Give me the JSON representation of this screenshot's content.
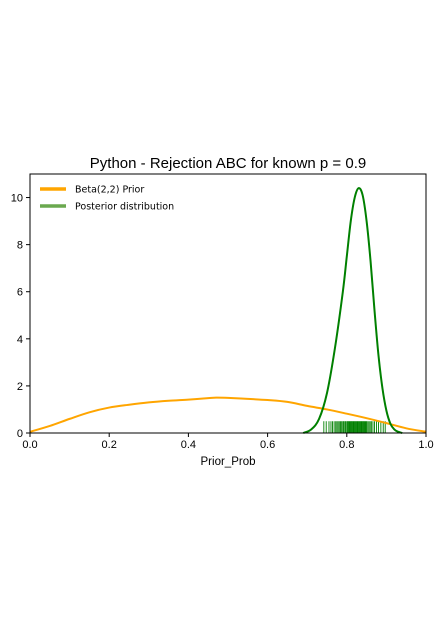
{
  "chart_data": {
    "type": "line",
    "title": "Python - Rejection ABC for known p = 0.9",
    "xlabel": "Prior_Prob",
    "ylabel": "",
    "xlim": [
      0.0,
      1.0
    ],
    "ylim": [
      0,
      11
    ],
    "xticks": [
      0.0,
      0.2,
      0.4,
      0.6,
      0.8,
      1.0
    ],
    "xtick_labels": [
      "0.0",
      "0.2",
      "0.4",
      "0.6",
      "0.8",
      "1.0"
    ],
    "yticks": [
      0,
      2,
      4,
      6,
      8,
      10
    ],
    "ytick_labels": [
      "0",
      "2",
      "4",
      "6",
      "8",
      "10"
    ],
    "grid": false,
    "legend_position": "top-left",
    "series": [
      {
        "name": "Beta(2,2) Prior",
        "color": "#FFA500",
        "x": [
          0.0,
          0.05,
          0.1,
          0.15,
          0.2,
          0.25,
          0.3,
          0.35,
          0.4,
          0.45,
          0.47,
          0.5,
          0.55,
          0.6,
          0.65,
          0.7,
          0.75,
          0.8,
          0.85,
          0.9,
          0.95,
          1.0
        ],
        "y": [
          0.05,
          0.3,
          0.6,
          0.88,
          1.08,
          1.2,
          1.3,
          1.37,
          1.42,
          1.48,
          1.5,
          1.49,
          1.45,
          1.4,
          1.32,
          1.15,
          1.0,
          0.82,
          0.63,
          0.42,
          0.2,
          0.05
        ]
      },
      {
        "name": "Posterior distribution",
        "color": "#008000",
        "x": [
          0.69,
          0.71,
          0.73,
          0.75,
          0.77,
          0.79,
          0.8,
          0.81,
          0.82,
          0.83,
          0.84,
          0.85,
          0.86,
          0.87,
          0.88,
          0.89,
          0.9,
          0.91,
          0.92,
          0.93,
          0.94
        ],
        "y": [
          0.0,
          0.15,
          0.6,
          1.7,
          3.6,
          6.0,
          7.5,
          9.0,
          10.0,
          10.4,
          10.1,
          9.0,
          7.3,
          5.2,
          3.3,
          1.9,
          0.95,
          0.4,
          0.15,
          0.05,
          0.0
        ]
      }
    ],
    "rug": {
      "color": "#008000",
      "height": 0.5,
      "x": [
        0.742,
        0.748,
        0.755,
        0.76,
        0.764,
        0.768,
        0.772,
        0.775,
        0.778,
        0.781,
        0.784,
        0.787,
        0.79,
        0.792,
        0.795,
        0.797,
        0.8,
        0.802,
        0.804,
        0.806,
        0.808,
        0.81,
        0.812,
        0.814,
        0.816,
        0.818,
        0.82,
        0.822,
        0.824,
        0.826,
        0.828,
        0.83,
        0.832,
        0.834,
        0.836,
        0.838,
        0.84,
        0.842,
        0.844,
        0.846,
        0.848,
        0.85,
        0.853,
        0.856,
        0.859,
        0.862,
        0.866,
        0.87,
        0.875,
        0.88,
        0.886,
        0.892,
        0.897
      ]
    }
  }
}
